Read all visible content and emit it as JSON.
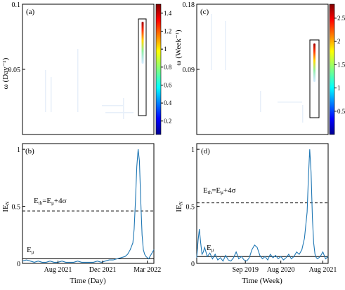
{
  "chart_data": [
    {
      "id": "a",
      "type": "heatmap",
      "panel_label": "(a)",
      "ylabel": "ω (Day⁻¹)",
      "ylim": [
        0,
        0.1
      ],
      "yticks": [
        0.05,
        0.1
      ],
      "ytick_labels": [
        "0.05",
        "0.1"
      ],
      "colorbar": {
        "ticks": [
          0.2,
          0.4,
          0.6,
          0.8,
          1,
          1.2,
          1.4
        ],
        "range": [
          0.05,
          1.5
        ]
      },
      "highlight_box": true,
      "hotspot": {
        "time_fraction": 0.85,
        "omega": [
          0.02,
          0.093
        ],
        "peak_value": 1.5
      }
    },
    {
      "id": "b",
      "type": "line",
      "panel_label": "(b)",
      "ylabel": "IE_N",
      "xlabel": "Time (Day)",
      "ylim": [
        0,
        1.05
      ],
      "yticks": [
        0,
        0.5,
        1
      ],
      "ytick_labels": [
        "0",
        "0.5",
        "1"
      ],
      "xtick_labels": [
        "Aug 2021",
        "Dec 2021",
        "Mar 2022"
      ],
      "xtick_positions": [
        0.27,
        0.61,
        0.95
      ],
      "threshold": {
        "label_main": "E",
        "label_sub": "th",
        "label_eq": "=E",
        "label_sub2": "μ",
        "label_rest": "+4σ",
        "value": 0.46
      },
      "mean": {
        "label_main": "E",
        "label_sub": "μ",
        "value": 0.04
      },
      "series": [
        {
          "x": [
            0,
            0.03,
            0.06,
            0.09,
            0.12,
            0.15,
            0.18,
            0.21,
            0.24,
            0.27,
            0.3,
            0.33,
            0.36,
            0.39,
            0.42,
            0.45,
            0.48,
            0.51,
            0.54,
            0.57,
            0.6,
            0.63,
            0.66,
            0.69,
            0.72,
            0.75,
            0.78,
            0.8,
            0.82,
            0.84,
            0.85,
            0.86,
            0.87,
            0.88,
            0.89,
            0.9,
            0.91,
            0.92,
            0.93,
            0.94,
            0.95,
            0.96,
            0.97,
            0.98,
            0.99,
            1.0
          ],
          "y": [
            0.02,
            0.03,
            0.02,
            0.01,
            0.02,
            0.01,
            0.01,
            0.02,
            0.01,
            0.01,
            0.02,
            0.01,
            0.01,
            0.01,
            0.02,
            0.01,
            0.01,
            0.01,
            0.01,
            0.02,
            0.01,
            0.02,
            0.03,
            0.03,
            0.04,
            0.05,
            0.06,
            0.08,
            0.12,
            0.18,
            0.3,
            0.55,
            0.85,
            1.0,
            0.9,
            0.55,
            0.25,
            0.12,
            0.08,
            0.06,
            0.05,
            0.04,
            0.06,
            0.08,
            0.1,
            0.12
          ]
        }
      ]
    },
    {
      "id": "c",
      "type": "heatmap",
      "panel_label": "(c)",
      "ylabel": "ω (Week⁻¹)",
      "ylim": [
        0,
        0.18
      ],
      "yticks": [
        0.09,
        0.18
      ],
      "ytick_labels": [
        "0.09",
        "0.18"
      ],
      "colorbar": {
        "ticks": [
          0.5,
          1,
          1.5,
          2,
          2.5
        ],
        "range": [
          0,
          2.8
        ]
      },
      "highlight_box": true,
      "hotspot": {
        "time_fraction": 0.88,
        "omega": [
          0.05,
          0.16
        ],
        "peak_value": 2.8
      }
    },
    {
      "id": "d",
      "type": "line",
      "panel_label": "(d)",
      "ylabel": "IE_N",
      "xlabel": "Time (Week)",
      "ylim": [
        0,
        1.05
      ],
      "yticks": [
        0,
        0.5,
        1
      ],
      "ytick_labels": [
        "0",
        "0.5",
        "1"
      ],
      "xtick_labels": [
        "Sep 2019",
        "Aug 2020",
        "Aug 2021"
      ],
      "xtick_positions": [
        0.37,
        0.64,
        0.96
      ],
      "threshold": {
        "label_main": "E",
        "label_sub": "th",
        "label_eq": "=E",
        "label_sub2": "μ",
        "label_rest": "+4σ",
        "value": 0.53
      },
      "mean": {
        "label_main": "E",
        "label_sub": "μ",
        "value": 0.06
      },
      "series": [
        {
          "x": [
            0,
            0.01,
            0.02,
            0.03,
            0.04,
            0.05,
            0.06,
            0.08,
            0.1,
            0.12,
            0.14,
            0.16,
            0.18,
            0.2,
            0.22,
            0.24,
            0.26,
            0.28,
            0.3,
            0.32,
            0.34,
            0.36,
            0.38,
            0.4,
            0.42,
            0.44,
            0.46,
            0.48,
            0.5,
            0.52,
            0.54,
            0.56,
            0.58,
            0.6,
            0.62,
            0.64,
            0.66,
            0.68,
            0.7,
            0.72,
            0.74,
            0.76,
            0.78,
            0.8,
            0.82,
            0.84,
            0.85,
            0.86,
            0.87,
            0.88,
            0.89,
            0.9,
            0.91,
            0.92,
            0.94,
            0.96,
            0.98,
            1.0
          ],
          "y": [
            0.05,
            0.2,
            0.3,
            0.18,
            0.08,
            0.1,
            0.14,
            0.06,
            0.09,
            0.04,
            0.08,
            0.03,
            0.05,
            0.02,
            0.07,
            0.03,
            0.02,
            0.05,
            0.1,
            0.04,
            0.06,
            0.03,
            0.02,
            0.05,
            0.12,
            0.16,
            0.14,
            0.07,
            0.04,
            0.06,
            0.03,
            0.08,
            0.05,
            0.07,
            0.04,
            0.06,
            0.03,
            0.05,
            0.08,
            0.04,
            0.06,
            0.1,
            0.08,
            0.12,
            0.22,
            0.45,
            0.75,
            1.0,
            0.8,
            0.4,
            0.18,
            0.08,
            0.05,
            0.04,
            0.06,
            0.1,
            0.04,
            0.06
          ]
        }
      ]
    }
  ],
  "xlabels": {
    "b": "Time (Day)",
    "d": "Time (Week)"
  }
}
